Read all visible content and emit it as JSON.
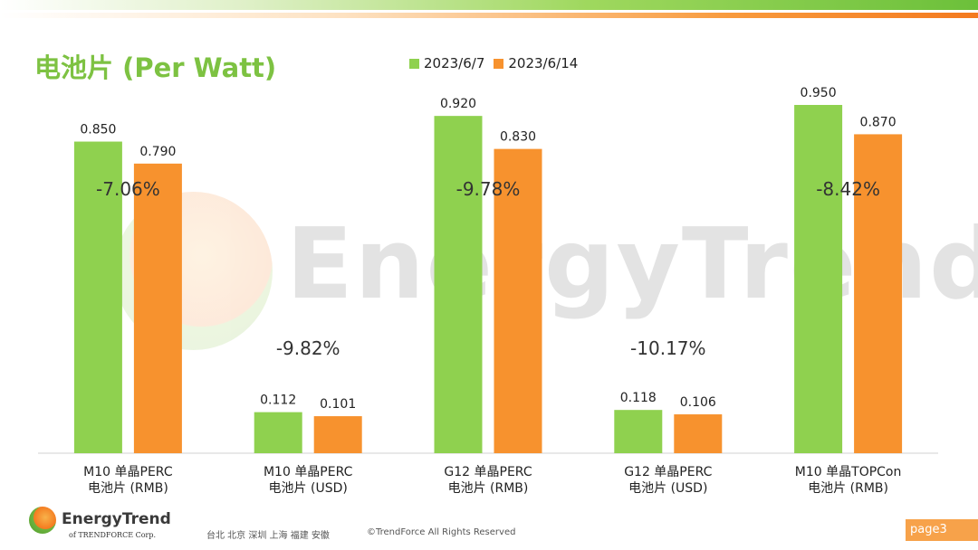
{
  "header": {
    "title": "电池片 (Per Watt)"
  },
  "legend": [
    {
      "label": "2023/6/7",
      "color": "#8fd14f"
    },
    {
      "label": "2023/6/14",
      "color": "#f7922e"
    }
  ],
  "chart_data": {
    "type": "bar",
    "title": "电池片 (Per Watt)",
    "categories": [
      [
        "M10 单晶PERC",
        "电池片 (RMB)"
      ],
      [
        "M10 单晶PERC",
        "电池片 (USD)"
      ],
      [
        "G12 单晶PERC",
        "电池片 (RMB)"
      ],
      [
        "G12 单晶PERC",
        "电池片 (USD)"
      ],
      [
        "M10 单晶TOPCon",
        "电池片 (RMB)"
      ]
    ],
    "series": [
      {
        "name": "2023/6/7",
        "color": "#8fd14f",
        "values": [
          0.85,
          0.112,
          0.92,
          0.118,
          0.95
        ],
        "labels": [
          "0.850",
          "0.112",
          "0.920",
          "0.118",
          "0.950"
        ]
      },
      {
        "name": "2023/6/14",
        "color": "#f7922e",
        "values": [
          0.79,
          0.101,
          0.83,
          0.106,
          0.87
        ],
        "labels": [
          "0.790",
          "0.101",
          "0.830",
          "0.106",
          "0.870"
        ]
      }
    ],
    "change_labels": [
      "-7.06%",
      "-9.82%",
      "-9.78%",
      "-10.17%",
      "-8.42%"
    ],
    "ylim": [
      0,
      1.0
    ],
    "grid": false,
    "legend_position": "top"
  },
  "watermark": {
    "text": "EnergyTrend"
  },
  "footer": {
    "brand": "EnergyTrend",
    "brand_sub": "of TRENDFORCE Corp.",
    "cities": "台北  北京  深圳  上海  福建  安徽",
    "copyright": "©TrendForce All Rights Reserved",
    "page": "page3"
  }
}
